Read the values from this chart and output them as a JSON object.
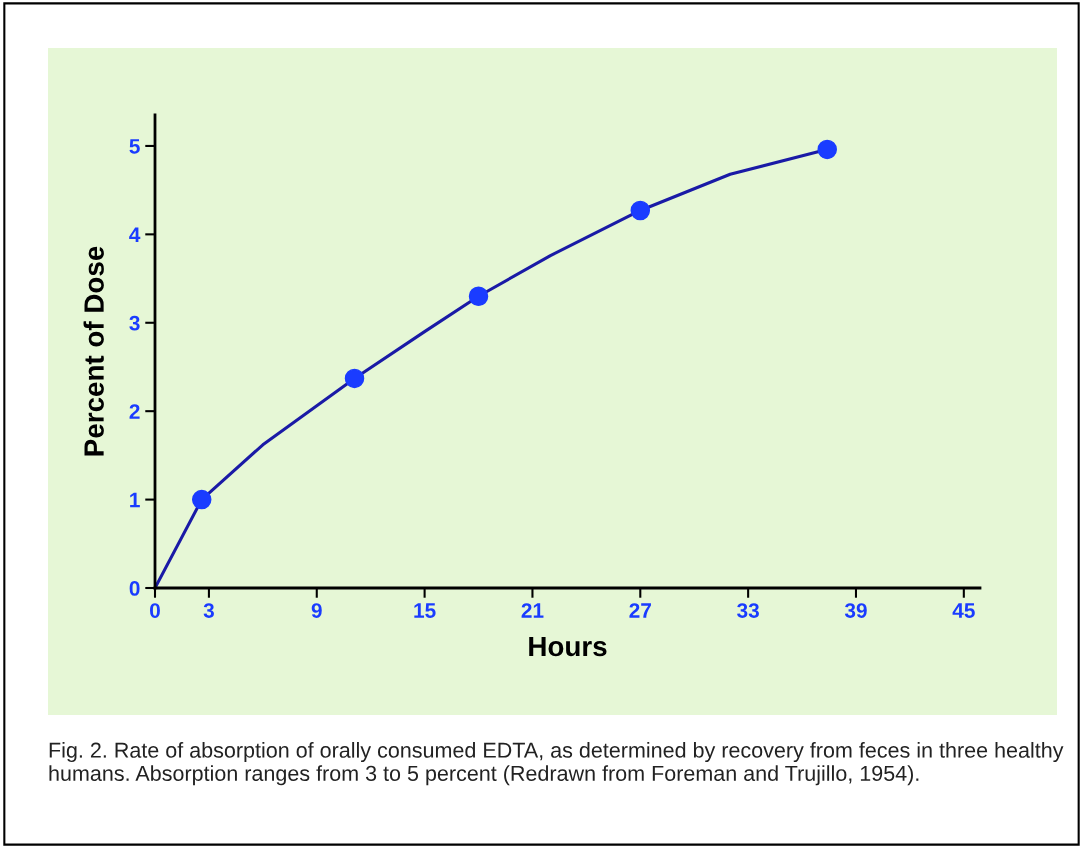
{
  "chart_data": {
    "type": "line",
    "xlabel": "Hours",
    "ylabel": "Percent of Dose",
    "series": [
      {
        "type": "line",
        "color": "#1a1aa6",
        "marker": "none",
        "x": [
          0,
          2.6,
          6,
          11.1,
          15,
          18,
          22,
          27,
          32,
          37.4
        ],
        "values": [
          0,
          1.0,
          1.62,
          2.37,
          2.9,
          3.3,
          3.76,
          4.27,
          4.68,
          4.96
        ]
      },
      {
        "type": "scatter",
        "color": "#1a3cff",
        "marker": "circle",
        "x": [
          2.6,
          11.1,
          18,
          27,
          37.4
        ],
        "values": [
          1.0,
          2.37,
          3.3,
          4.27,
          4.96
        ]
      }
    ],
    "xlim": [
      0,
      45.9
    ],
    "xticks": [
      0,
      3,
      9,
      15,
      21,
      27,
      33,
      39,
      45
    ],
    "ylim": [
      0,
      5.35
    ],
    "yticks": [
      0,
      1,
      2,
      3,
      4,
      5
    ],
    "grid": false,
    "legend": false,
    "annotations": [
      "Fig. 2. Rate of absorption of orally consumed EDTA, as determined by recovery from feces in three healthy humans. Absorption ranges from 3 to 5 percent (Redrawn from Foreman and Trujillo, 1954)."
    ]
  }
}
